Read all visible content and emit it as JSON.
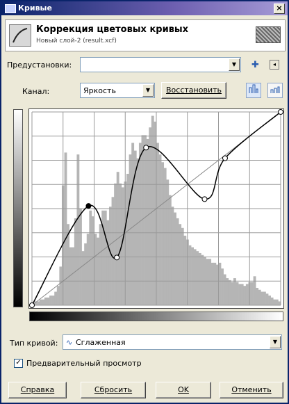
{
  "window": {
    "title": "Кривые",
    "close_glyph": "×"
  },
  "header": {
    "title": "Коррекция цветовых кривых",
    "subtitle": "Новый слой-2 (result.xcf)"
  },
  "presets": {
    "label": "Предустановки:",
    "value": "",
    "add_glyph": "✚",
    "menu_glyph": "◂"
  },
  "channel": {
    "label": "Канал:",
    "value": "Яркость",
    "reset_label": "Восстановить"
  },
  "curve_type": {
    "label": "Тип кривой:",
    "value": "Сглаженная",
    "icon_glyph": "∿"
  },
  "preview": {
    "label": "Предварительный просмотр",
    "checked": true,
    "check_glyph": "✓"
  },
  "buttons": {
    "help": "Справка",
    "reset": "Сбросить",
    "ok": "OK",
    "cancel": "Отменить"
  },
  "colors": {
    "curve": "#000000",
    "histogram": "#b5b5b5",
    "grid": "#9a9a9a",
    "title_bar": "#0a246a"
  },
  "chart_data": {
    "type": "line",
    "xlim": [
      0,
      255
    ],
    "ylim": [
      0,
      255
    ],
    "grid": true,
    "grid_divisions": 8,
    "control_points": [
      {
        "x": 0,
        "y": 0
      },
      {
        "x": 58,
        "y": 131
      },
      {
        "x": 87,
        "y": 63
      },
      {
        "x": 117,
        "y": 208
      },
      {
        "x": 177,
        "y": 140
      },
      {
        "x": 198,
        "y": 194
      },
      {
        "x": 255,
        "y": 255
      }
    ],
    "histogram": [
      0,
      2,
      2,
      3,
      3,
      4,
      4,
      5,
      5,
      7,
      10,
      20,
      62,
      79,
      42,
      30,
      30,
      45,
      78,
      50,
      28,
      32,
      37,
      49,
      46,
      37,
      35,
      42,
      49,
      49,
      44,
      51,
      56,
      63,
      69,
      63,
      61,
      64,
      68,
      78,
      84,
      80,
      76,
      84,
      88,
      88,
      86,
      92,
      98,
      95,
      84,
      78,
      74,
      71,
      65,
      57,
      51,
      48,
      45,
      42,
      40,
      36,
      34,
      31,
      30,
      29,
      28,
      27,
      26,
      25,
      24,
      24,
      22,
      22,
      21,
      22,
      19,
      16,
      14,
      13,
      12,
      14,
      12,
      11,
      11,
      10,
      11,
      12,
      12,
      15,
      9,
      8,
      7,
      7,
      6,
      5,
      4,
      3,
      3,
      2
    ]
  }
}
